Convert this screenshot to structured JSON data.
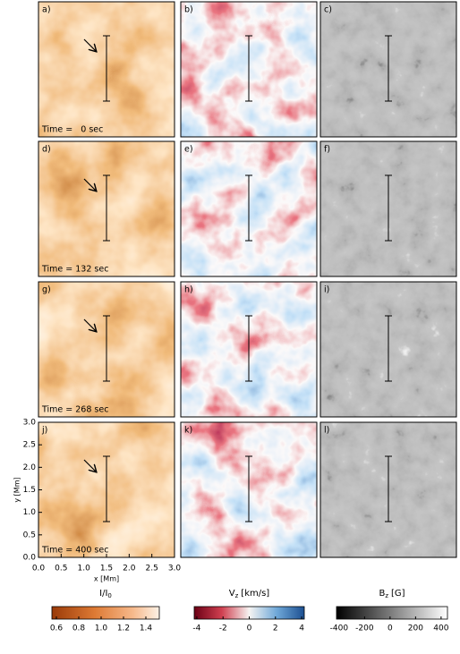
{
  "figure": {
    "rows": [
      {
        "time": "Time =   0 sec",
        "panels": [
          "a)",
          "b)",
          "c)"
        ]
      },
      {
        "time": "Time = 132 sec",
        "panels": [
          "d)",
          "e)",
          "f)"
        ]
      },
      {
        "time": "Time = 268 sec",
        "panels": [
          "g)",
          "h)",
          "i)"
        ]
      },
      {
        "time": "Time = 400 sec",
        "panels": [
          "j)",
          "k)",
          "l)"
        ]
      }
    ],
    "x_axis": {
      "label": "x [Mm]",
      "xlim": [
        0,
        3
      ],
      "xticks": [
        {
          "value": 0,
          "label": "0.0"
        },
        0.5,
        {
          "value": 1,
          "label": "1.0"
        },
        1.5,
        {
          "value": 2,
          "label": "2.0"
        },
        2.5,
        {
          "value": 3,
          "label": "3.0"
        }
      ]
    },
    "y_axis": {
      "label": "y [Mm]",
      "ylim": [
        0,
        3
      ],
      "yticks": [
        {
          "value": 0,
          "label": "0.0"
        },
        0.5,
        {
          "value": 1,
          "label": "1.0"
        },
        1.5,
        {
          "value": 2,
          "label": "2.0"
        },
        2.5,
        {
          "value": 3,
          "label": "3.0"
        }
      ]
    },
    "colorbars": [
      {
        "symbol": "I/I",
        "subscript": "0",
        "unit": "",
        "lim": [
          0.56,
          1.52
        ],
        "ticks": [
          0.6,
          0.8,
          {
            "value": 1,
            "label": "1.0"
          },
          1.2,
          1.4
        ]
      },
      {
        "symbol": "V",
        "subscript": "z",
        "unit": "[km/s]",
        "lim": [
          -4.2,
          4.2
        ],
        "ticks": [
          -4,
          -2,
          0,
          2,
          4
        ]
      },
      {
        "symbol": "B",
        "subscript": "z",
        "unit": "[G]",
        "lim": [
          -420,
          450
        ],
        "ticks": [
          -400,
          -200,
          0,
          200,
          400
        ]
      }
    ]
  }
}
